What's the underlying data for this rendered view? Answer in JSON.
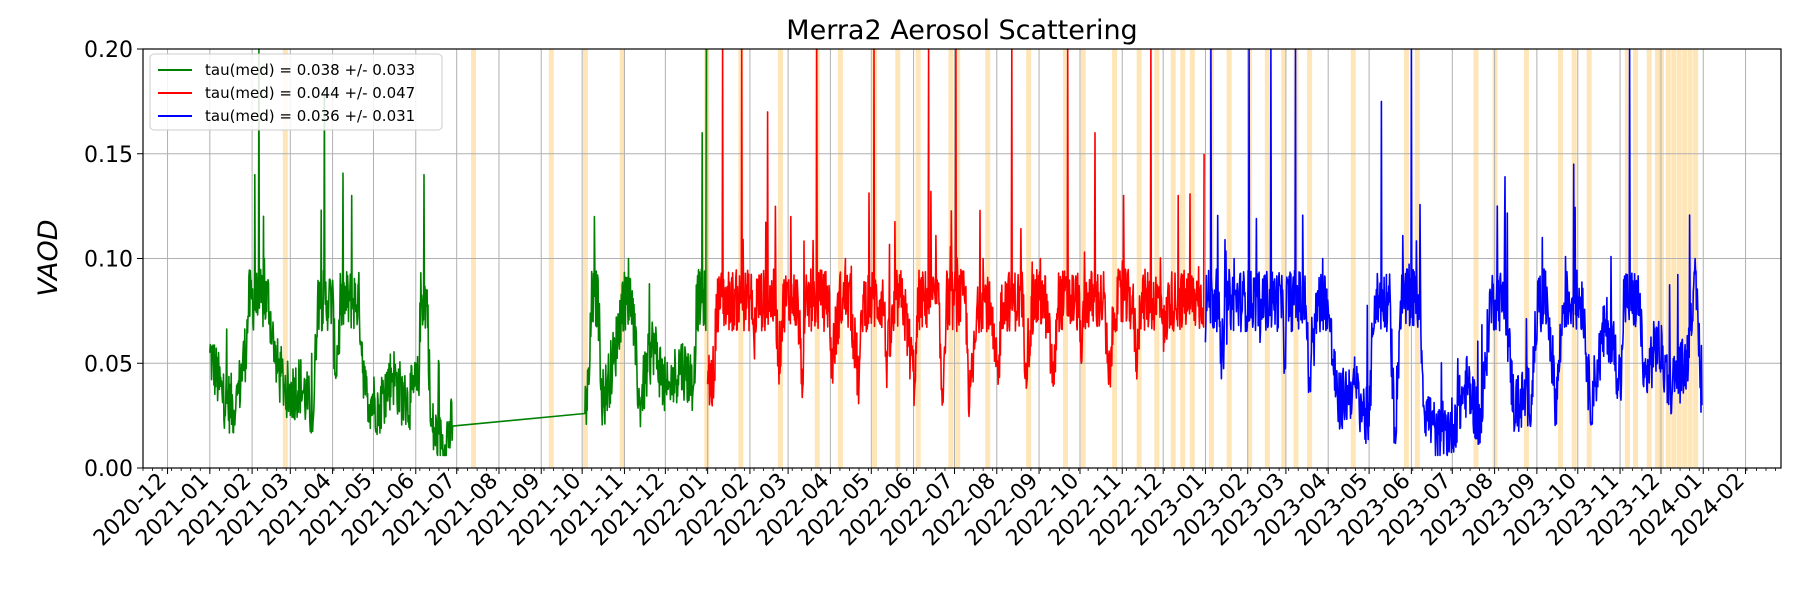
{
  "chart_data": {
    "type": "line",
    "title": "Merra2 Aerosol Scattering",
    "xlabel": "",
    "ylabel": "VAOD",
    "xlim": [
      "2020-11-13",
      "2024-02-27"
    ],
    "ylim": [
      0,
      0.2
    ],
    "grid": true,
    "legend_position": "top-left",
    "y_ticks": [
      "0.00",
      "0.05",
      "0.10",
      "0.15",
      "0.20"
    ],
    "x_ticks": [
      "2020-12",
      "2021-01",
      "2021-02",
      "2021-03",
      "2021-04",
      "2021-05",
      "2021-06",
      "2021-07",
      "2021-08",
      "2021-09",
      "2021-10",
      "2021-11",
      "2021-12",
      "2022-01",
      "2022-02",
      "2022-03",
      "2022-04",
      "2022-05",
      "2022-06",
      "2022-07",
      "2022-08",
      "2022-09",
      "2022-10",
      "2022-11",
      "2022-12",
      "2023-01",
      "2023-02",
      "2023-03",
      "2023-04",
      "2023-05",
      "2023-06",
      "2023-07",
      "2023-08",
      "2023-09",
      "2023-10",
      "2023-11",
      "2023-12",
      "2024-01",
      "2024-02"
    ],
    "series": [
      {
        "name": "tau(med) = 0.038 +/- 0.033",
        "color": "#008000",
        "points": [
          [
            "2021-01-01",
            0.055
          ],
          [
            "2021-01-10",
            0.035
          ],
          [
            "2021-01-20",
            0.028
          ],
          [
            "2021-01-28",
            0.06
          ],
          [
            "2021-02-03",
            0.14
          ],
          [
            "2021-02-06",
            0.2
          ],
          [
            "2021-02-10",
            0.1
          ],
          [
            "2021-02-18",
            0.05
          ],
          [
            "2021-02-28",
            0.035
          ],
          [
            "2021-03-08",
            0.04
          ],
          [
            "2021-03-18",
            0.025
          ],
          [
            "2021-03-26",
            0.18
          ],
          [
            "2021-04-03",
            0.045
          ],
          [
            "2021-04-15",
            0.13
          ],
          [
            "2021-04-25",
            0.035
          ],
          [
            "2021-05-05",
            0.03
          ],
          [
            "2021-05-15",
            0.045
          ],
          [
            "2021-05-25",
            0.03
          ],
          [
            "2021-06-03",
            0.04
          ],
          [
            "2021-06-07",
            0.14
          ],
          [
            "2021-06-12",
            0.02
          ],
          [
            "2021-06-20",
            0.01
          ],
          [
            "2021-06-28",
            0.02
          ],
          [
            "2021-10-03",
            0.026
          ],
          [
            "2021-10-06",
            0.04
          ],
          [
            "2021-10-10",
            0.12
          ],
          [
            "2021-10-16",
            0.03
          ],
          [
            "2021-10-25",
            0.055
          ],
          [
            "2021-11-04",
            0.1
          ],
          [
            "2021-11-12",
            0.03
          ],
          [
            "2021-11-22",
            0.06
          ],
          [
            "2021-12-02",
            0.035
          ],
          [
            "2021-12-12",
            0.05
          ],
          [
            "2021-12-22",
            0.04
          ],
          [
            "2021-12-28",
            0.16
          ],
          [
            "2021-12-31",
            0.2
          ]
        ]
      },
      {
        "name": "tau(med) = 0.044 +/- 0.047",
        "color": "#ff0000",
        "points": [
          [
            "2022-01-01",
            0.04
          ],
          [
            "2022-01-06",
            0.045
          ],
          [
            "2022-01-12",
            0.2
          ],
          [
            "2022-01-18",
            0.07
          ],
          [
            "2022-01-26",
            0.2
          ],
          [
            "2022-02-04",
            0.06
          ],
          [
            "2022-02-14",
            0.17
          ],
          [
            "2022-02-22",
            0.05
          ],
          [
            "2022-03-03",
            0.12
          ],
          [
            "2022-03-12",
            0.04
          ],
          [
            "2022-03-22",
            0.2
          ],
          [
            "2022-04-02",
            0.05
          ],
          [
            "2022-04-12",
            0.1
          ],
          [
            "2022-04-22",
            0.04
          ],
          [
            "2022-05-03",
            0.2
          ],
          [
            "2022-05-12",
            0.05
          ],
          [
            "2022-05-22",
            0.09
          ],
          [
            "2022-06-02",
            0.04
          ],
          [
            "2022-06-12",
            0.2
          ],
          [
            "2022-06-22",
            0.03
          ],
          [
            "2022-07-02",
            0.2
          ],
          [
            "2022-07-12",
            0.03
          ],
          [
            "2022-07-22",
            0.1
          ],
          [
            "2022-08-02",
            0.04
          ],
          [
            "2022-08-12",
            0.2
          ],
          [
            "2022-08-22",
            0.05
          ],
          [
            "2022-09-02",
            0.1
          ],
          [
            "2022-09-12",
            0.04
          ],
          [
            "2022-09-22",
            0.2
          ],
          [
            "2022-10-02",
            0.05
          ],
          [
            "2022-10-12",
            0.16
          ],
          [
            "2022-10-22",
            0.04
          ],
          [
            "2022-11-02",
            0.13
          ],
          [
            "2022-11-12",
            0.05
          ],
          [
            "2022-11-22",
            0.2
          ],
          [
            "2022-12-02",
            0.06
          ],
          [
            "2022-12-12",
            0.13
          ],
          [
            "2022-12-20",
            0.08
          ],
          [
            "2022-12-31",
            0.15
          ]
        ]
      },
      {
        "name": "tau(med) = 0.036 +/- 0.031",
        "color": "#0000ff",
        "points": [
          [
            "2023-01-01",
            0.06
          ],
          [
            "2023-01-05",
            0.2
          ],
          [
            "2023-01-12",
            0.05
          ],
          [
            "2023-01-22",
            0.1
          ],
          [
            "2023-02-02",
            0.2
          ],
          [
            "2023-02-10",
            0.06
          ],
          [
            "2023-02-18",
            0.2
          ],
          [
            "2023-02-28",
            0.05
          ],
          [
            "2023-03-08",
            0.2
          ],
          [
            "2023-03-18",
            0.04
          ],
          [
            "2023-03-28",
            0.1
          ],
          [
            "2023-04-08",
            0.03
          ],
          [
            "2023-04-20",
            0.04
          ],
          [
            "2023-05-01",
            0.02
          ],
          [
            "2023-05-10",
            0.175
          ],
          [
            "2023-05-20",
            0.015
          ],
          [
            "2023-06-01",
            0.2
          ],
          [
            "2023-06-10",
            0.03
          ],
          [
            "2023-06-20",
            0.015
          ],
          [
            "2023-07-01",
            0.02
          ],
          [
            "2023-07-12",
            0.04
          ],
          [
            "2023-07-22",
            0.02
          ],
          [
            "2023-08-03",
            0.125
          ],
          [
            "2023-08-15",
            0.03
          ],
          [
            "2023-08-28",
            0.035
          ],
          [
            "2023-09-05",
            0.11
          ],
          [
            "2023-09-15",
            0.03
          ],
          [
            "2023-09-28",
            0.145
          ],
          [
            "2023-10-10",
            0.03
          ],
          [
            "2023-10-22",
            0.07
          ],
          [
            "2023-11-02",
            0.04
          ],
          [
            "2023-11-08",
            0.2
          ],
          [
            "2023-11-18",
            0.04
          ],
          [
            "2023-11-28",
            0.06
          ],
          [
            "2023-12-08",
            0.04
          ],
          [
            "2023-12-20",
            0.05
          ],
          [
            "2023-12-26",
            0.1
          ],
          [
            "2023-12-31",
            0.03
          ]
        ]
      }
    ],
    "shaded_dates": [
      "2021-02-25",
      "2021-07-13",
      "2021-09-08",
      "2021-10-03",
      "2021-10-30",
      "2021-12-31",
      "2022-01-25",
      "2022-02-23",
      "2022-03-22",
      "2022-04-08",
      "2022-05-03",
      "2022-05-20",
      "2022-06-04",
      "2022-06-28",
      "2022-07-03",
      "2022-07-25",
      "2022-08-24",
      "2022-09-20",
      "2022-10-03",
      "2022-10-26",
      "2022-11-13",
      "2022-11-26",
      "2022-12-08",
      "2022-12-15",
      "2022-12-22",
      "2023-01-05",
      "2023-01-18",
      "2023-02-02",
      "2023-02-15",
      "2023-02-27",
      "2023-03-08",
      "2023-03-18",
      "2023-04-19",
      "2023-05-28",
      "2023-06-05",
      "2023-07-18",
      "2023-08-01",
      "2023-08-24",
      "2023-09-18",
      "2023-09-28",
      "2023-10-09",
      "2023-11-06",
      "2023-11-12",
      "2023-11-22",
      "2023-11-28",
      "2023-12-01",
      "2023-12-06",
      "2023-12-10",
      "2023-12-14",
      "2023-12-18",
      "2023-12-22",
      "2023-12-26"
    ],
    "shade_color": "#ffd27f"
  }
}
